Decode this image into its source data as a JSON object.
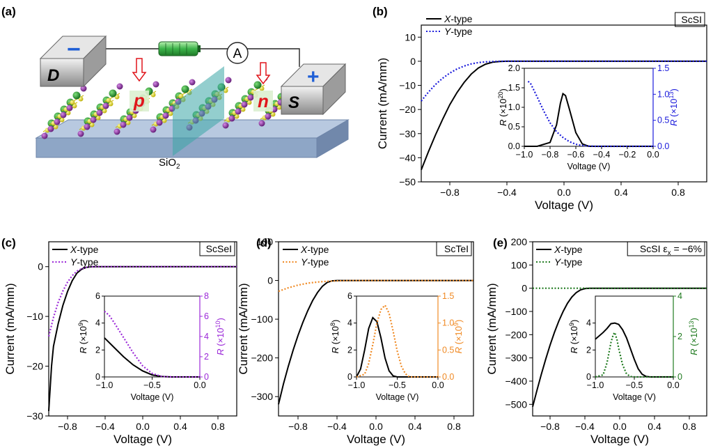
{
  "panel_a": {
    "label": "(a)",
    "electrode_d": "D",
    "electrode_s": "S",
    "minus_sign": "−",
    "plus_sign": "+",
    "ammeter": "A",
    "p_region": "p",
    "n_region": "n",
    "substrate": "SiO",
    "substrate_sub": "2",
    "colors": {
      "minus": "#1f5fd6",
      "plus": "#1f5fd6",
      "pn_text": "#e0151b",
      "arrow": "#e0151b",
      "battery": "#39b54a",
      "substrate_top": "#a9bdd6",
      "substrate_front": "#7f98ba",
      "atom_green": "#1e8a2e",
      "atom_purple": "#8a2b9e",
      "atom_yellow": "#e8e021",
      "interface": "#3aa6a6"
    }
  },
  "chart_data": [
    {
      "panel": "(b)",
      "type": "line",
      "material": "ScSI",
      "xlabel": "Voltage (V)",
      "ylabel": "Current (mA/mm)",
      "xlim": [
        -1.0,
        1.0
      ],
      "ylim": [
        -50,
        15
      ],
      "xticks": [
        -0.8,
        -0.4,
        0.0,
        0.4,
        0.8
      ],
      "xtick_labels": [
        "−0.8",
        "−0.4",
        "0.0",
        "0.4",
        "0.8"
      ],
      "yticks": [
        10,
        0,
        -10,
        -20,
        -30,
        -40,
        -50
      ],
      "ytick_labels": [
        "10",
        "0",
        "−10",
        "−20",
        "−30",
        "−40",
        "−50"
      ],
      "series": [
        {
          "name": "X-type",
          "color": "#000000",
          "dash": "solid",
          "x": [
            -1.0,
            -0.95,
            -0.9,
            -0.85,
            -0.8,
            -0.75,
            -0.7,
            -0.65,
            -0.6,
            -0.55,
            -0.5,
            -0.45,
            -0.4,
            -0.3,
            0.0,
            1.0
          ],
          "y": [
            -45,
            -37.5,
            -30.5,
            -24,
            -18,
            -13,
            -8.8,
            -5.3,
            -2.8,
            -1.2,
            -0.4,
            -0.1,
            0,
            0,
            0,
            0
          ]
        },
        {
          "name": "Y-type",
          "color": "#1a1adb",
          "dash": "dotted",
          "x": [
            -1.0,
            -0.95,
            -0.9,
            -0.85,
            -0.8,
            -0.75,
            -0.7,
            -0.65,
            -0.6,
            -0.55,
            -0.5,
            -0.45,
            -0.4,
            0.0,
            1.0
          ],
          "y": [
            -16.5,
            -12.8,
            -9.6,
            -7.0,
            -4.9,
            -3.2,
            -2.0,
            -1.1,
            -0.55,
            -0.25,
            -0.1,
            -0.03,
            0,
            0,
            0
          ]
        }
      ],
      "inset": {
        "xlabel": "Voltage (V)",
        "xlim": [
          -1.0,
          0.0
        ],
        "xticks": [
          -1.0,
          -0.8,
          -0.6,
          -0.4,
          -0.2,
          0.0
        ],
        "xtick_labels": [
          "−1.0",
          "−0.8",
          "−0.6",
          "−0.4",
          "−0.2",
          "0.0"
        ],
        "ylabel_left": "R (×10",
        "ylabel_left_exp": "20",
        "ylim_left": [
          0,
          2.0
        ],
        "yticks_left": [
          0.0,
          0.5,
          1.0,
          1.5,
          2.0
        ],
        "ytick_labels_left": [
          "0.0",
          "0.5",
          "1.0",
          "1.5",
          "2.0"
        ],
        "ylabel_right": "R (×10",
        "ylabel_right_exp": "13",
        "ylim_right": [
          0,
          1.5
        ],
        "yticks_right": [
          0.0,
          0.5,
          1.0,
          1.5
        ],
        "ytick_labels_right": [
          "0.0",
          "0.5",
          "1.0",
          "1.5"
        ],
        "right_color": "#1a1adb",
        "left_series": {
          "x": [
            -1.0,
            -0.9,
            -0.8,
            -0.75,
            -0.72,
            -0.7,
            -0.68,
            -0.65,
            -0.6,
            -0.55,
            -0.5,
            0.0
          ],
          "y": [
            0,
            0.0,
            0.1,
            0.55,
            1.1,
            1.35,
            1.3,
            0.95,
            0.35,
            0.06,
            0.0,
            0.0
          ]
        },
        "right_series": {
          "x": [
            -0.97,
            -0.95,
            -0.9,
            -0.85,
            -0.8,
            -0.75,
            -0.7,
            -0.65,
            -0.6,
            -0.55,
            -0.5,
            -0.45,
            0.0
          ],
          "y": [
            1.25,
            1.2,
            0.95,
            0.68,
            0.45,
            0.28,
            0.17,
            0.09,
            0.04,
            0.015,
            0.005,
            0.0,
            0.0
          ]
        }
      }
    },
    {
      "panel": "(c)",
      "type": "line",
      "material": "ScSeI",
      "xlabel": "Voltage (V)",
      "ylabel": "Current (mA/mm)",
      "xlim": [
        -1.0,
        1.0
      ],
      "ylim": [
        -30,
        5
      ],
      "xticks": [
        -0.8,
        -0.4,
        0.0,
        0.4,
        0.8
      ],
      "xtick_labels": [
        "−0.8",
        "−0.4",
        "0.0",
        "0.4",
        "0.8"
      ],
      "yticks": [
        0,
        -10,
        -20,
        -30
      ],
      "ytick_labels": [
        "0",
        "−10",
        "−20",
        "−30"
      ],
      "series": [
        {
          "name": "X-type",
          "color": "#000000",
          "dash": "solid",
          "x": [
            -1.0,
            -0.97,
            -0.95,
            -0.9,
            -0.85,
            -0.8,
            -0.75,
            -0.7,
            -0.65,
            -0.6,
            -0.55,
            -0.5,
            0.0,
            1.0
          ],
          "y": [
            -29,
            -20,
            -16,
            -11.5,
            -7.8,
            -5.0,
            -2.8,
            -1.3,
            -0.5,
            -0.15,
            -0.03,
            0,
            0,
            0
          ]
        },
        {
          "name": "Y-type",
          "color": "#9b28d8",
          "dash": "dotted",
          "x": [
            -1.0,
            -0.95,
            -0.9,
            -0.85,
            -0.8,
            -0.75,
            -0.7,
            -0.65,
            -0.6,
            -0.55,
            -0.5,
            0.0,
            1.0
          ],
          "y": [
            -14,
            -10.2,
            -7.2,
            -4.9,
            -3.1,
            -1.8,
            -0.9,
            -0.4,
            -0.12,
            -0.03,
            0,
            0,
            0
          ]
        }
      ],
      "inset": {
        "xlabel": "Voltage (V)",
        "xlim": [
          -1.0,
          0.0
        ],
        "xticks": [
          -1.0,
          -0.5,
          0.0
        ],
        "xtick_labels": [
          "−1.0",
          "−0.5",
          "0.0"
        ],
        "ylabel_left": "R (×10",
        "ylabel_left_exp": "9",
        "ylim_left": [
          0,
          6
        ],
        "yticks_left": [
          0,
          2,
          4,
          6
        ],
        "ytick_labels_left": [
          "0",
          "2",
          "4",
          "6"
        ],
        "ylabel_right": "R (×10",
        "ylabel_right_exp": "10",
        "ylim_right": [
          0,
          8
        ],
        "yticks_right": [
          0,
          2,
          4,
          6,
          8
        ],
        "ytick_labels_right": [
          "0",
          "2",
          "4",
          "6",
          "8"
        ],
        "right_color": "#9b28d8",
        "left_series": {
          "x": [
            -1.0,
            -0.9,
            -0.8,
            -0.7,
            -0.6,
            -0.5,
            -0.4,
            -0.3,
            0.0
          ],
          "y": [
            2.9,
            2.2,
            1.5,
            0.9,
            0.45,
            0.15,
            0.03,
            0.0,
            0.0
          ]
        },
        "right_series": {
          "x": [
            -1.0,
            -0.95,
            -0.9,
            -0.8,
            -0.7,
            -0.6,
            -0.5,
            -0.4,
            -0.3,
            0.0
          ],
          "y": [
            6.5,
            6.1,
            5.4,
            3.9,
            2.4,
            1.1,
            0.35,
            0.05,
            0.0,
            0.0
          ]
        }
      }
    },
    {
      "panel": "(d)",
      "type": "line",
      "material": "ScTeI",
      "xlabel": "Voltage (V)",
      "ylabel": "Current (mA/mm)",
      "xlim": [
        -1.0,
        1.0
      ],
      "ylim": [
        -350,
        100
      ],
      "xticks": [
        -0.8,
        -0.4,
        0.0,
        0.4,
        0.8
      ],
      "xtick_labels": [
        "−0.8",
        "−0.4",
        "0.0",
        "0.4",
        "0.8"
      ],
      "yticks": [
        100,
        0,
        -100,
        -200,
        -300
      ],
      "ytick_labels": [
        "100",
        "0",
        "−100",
        "−200",
        "−300"
      ],
      "series": [
        {
          "name": "X-type",
          "color": "#000000",
          "dash": "solid",
          "x": [
            -1.0,
            -0.95,
            -0.9,
            -0.85,
            -0.8,
            -0.75,
            -0.7,
            -0.65,
            -0.6,
            -0.55,
            -0.5,
            -0.45,
            -0.4,
            0.0,
            1.0
          ],
          "y": [
            -320,
            -268,
            -222,
            -180,
            -142,
            -108,
            -78,
            -52,
            -31,
            -15,
            -5,
            -1,
            0,
            0,
            0
          ]
        },
        {
          "name": "Y-type",
          "color": "#f08a24",
          "dash": "dotted",
          "x": [
            -1.0,
            -0.9,
            -0.8,
            -0.7,
            -0.6,
            -0.5,
            -0.4,
            -0.3,
            -0.2,
            0.0,
            1.0
          ],
          "y": [
            -28,
            -19,
            -12,
            -7,
            -4,
            -2,
            -1,
            -0.3,
            0,
            0,
            0
          ]
        }
      ],
      "inset": {
        "xlabel": "Voltage (V)",
        "xlim": [
          -1.0,
          0.0
        ],
        "xticks": [
          -1.0,
          -0.5,
          0.0
        ],
        "xtick_labels": [
          "−1.0",
          "−0.5",
          "0.0"
        ],
        "ylabel_left": "R (×10",
        "ylabel_left_exp": "8",
        "ylim_left": [
          0,
          6
        ],
        "yticks_left": [
          0,
          2,
          4,
          6
        ],
        "ytick_labels_left": [
          "0",
          "2",
          "4",
          "6"
        ],
        "ylabel_right": "R (×10",
        "ylabel_right_exp": "9",
        "ylim_right": [
          0,
          1.5
        ],
        "yticks_right": [
          0.0,
          0.5,
          1.0,
          1.5
        ],
        "ytick_labels_right": [
          "0.0",
          "0.5",
          "1.0",
          "1.5"
        ],
        "right_color": "#f08a24",
        "left_series": {
          "x": [
            -1.0,
            -0.95,
            -0.9,
            -0.85,
            -0.8,
            -0.75,
            -0.7,
            -0.65,
            -0.6,
            -0.55,
            -0.5,
            0.0
          ],
          "y": [
            0.0,
            0.6,
            2.0,
            3.6,
            4.4,
            4.1,
            2.9,
            1.4,
            0.45,
            0.08,
            0.0,
            0.0
          ]
        },
        "right_series": {
          "x": [
            -1.0,
            -0.9,
            -0.85,
            -0.8,
            -0.75,
            -0.7,
            -0.65,
            -0.6,
            -0.55,
            -0.5,
            -0.45,
            -0.4,
            -0.35,
            0.0
          ],
          "y": [
            0.0,
            0.05,
            0.25,
            0.6,
            1.0,
            1.25,
            1.33,
            1.18,
            0.85,
            0.48,
            0.2,
            0.06,
            0.0,
            0.0
          ]
        }
      }
    },
    {
      "panel": "(e)",
      "type": "line",
      "material": "ScSI ε",
      "material_sub": "x",
      "material_value": " = −6%",
      "xlabel": "Voltage (V)",
      "ylabel": "Current (mA/mm)",
      "xlim": [
        -1.0,
        1.0
      ],
      "ylim": [
        -550,
        200
      ],
      "xticks": [
        -0.8,
        -0.4,
        0.0,
        0.4,
        0.8
      ],
      "xtick_labels": [
        "−0.8",
        "−0.4",
        "0.0",
        "0.4",
        "0.8"
      ],
      "yticks": [
        200,
        100,
        0,
        -100,
        -200,
        -300,
        -400,
        -500
      ],
      "ytick_labels": [
        "200",
        "100",
        "0",
        "−100",
        "−200",
        "−300",
        "−400",
        "−500"
      ],
      "series": [
        {
          "name": "X-type",
          "color": "#000000",
          "dash": "solid",
          "x": [
            -1.0,
            -0.95,
            -0.9,
            -0.85,
            -0.8,
            -0.75,
            -0.7,
            -0.65,
            -0.6,
            -0.55,
            -0.5,
            -0.45,
            -0.4,
            -0.35,
            -0.3,
            0.0,
            1.0
          ],
          "y": [
            -510,
            -438,
            -370,
            -305,
            -245,
            -190,
            -142,
            -100,
            -65,
            -38,
            -19,
            -7,
            -2,
            -0.5,
            0,
            0,
            0
          ]
        },
        {
          "name": "Y-type",
          "color": "#1f7a1f",
          "dash": "dotted",
          "x": [
            -1.0,
            -0.5,
            0.0,
            1.0
          ],
          "y": [
            0,
            0,
            0,
            0
          ]
        }
      ],
      "inset": {
        "xlabel": "Voltage (V)",
        "xlim": [
          -1.0,
          0.0
        ],
        "xticks": [
          -1.0,
          -0.5,
          0.0
        ],
        "xtick_labels": [
          "−1.0",
          "−0.5",
          "0.0"
        ],
        "ylabel_left": "R (×10",
        "ylabel_left_exp": "9",
        "ylim_left": [
          0,
          6
        ],
        "yticks_left": [
          0,
          2,
          4
        ],
        "ytick_labels_left": [
          "0",
          "2",
          "4"
        ],
        "ylabel_right": "R (×10",
        "ylabel_right_exp": "13",
        "ylim_right": [
          0,
          4
        ],
        "yticks_right": [
          0,
          2,
          4
        ],
        "ytick_labels_right": [
          "0",
          "2",
          "4"
        ],
        "right_color": "#1f7a1f",
        "left_series": {
          "x": [
            -1.0,
            -0.9,
            -0.85,
            -0.8,
            -0.75,
            -0.7,
            -0.65,
            -0.6,
            -0.55,
            -0.5,
            -0.45,
            -0.4,
            -0.35,
            -0.3,
            0.0
          ],
          "y": [
            2.8,
            3.3,
            3.6,
            3.95,
            4.0,
            3.9,
            3.5,
            2.9,
            2.1,
            1.3,
            0.6,
            0.2,
            0.04,
            0.0,
            0.0
          ]
        },
        "right_series": {
          "x": [
            -1.0,
            -0.9,
            -0.85,
            -0.8,
            -0.77,
            -0.75,
            -0.72,
            -0.7,
            -0.65,
            -0.6,
            -0.55,
            -0.5,
            0.0
          ],
          "y": [
            0.0,
            0.1,
            0.7,
            1.7,
            2.1,
            2.2,
            1.8,
            1.4,
            0.6,
            0.15,
            0.02,
            0.0,
            0.0
          ]
        }
      }
    }
  ]
}
